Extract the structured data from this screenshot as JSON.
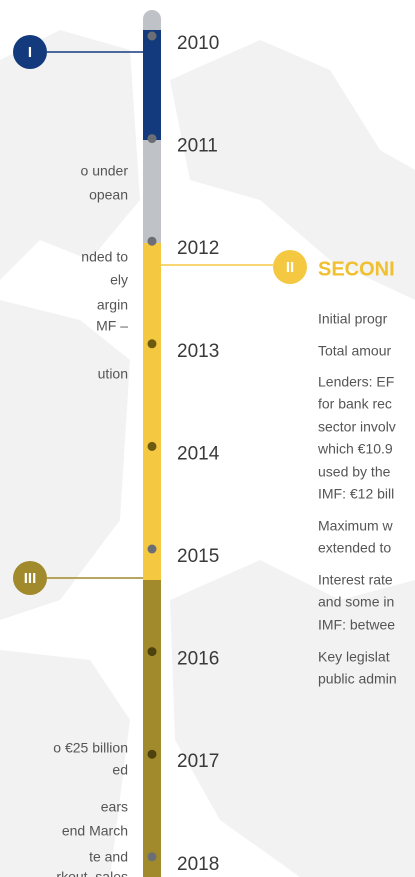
{
  "timeline": {
    "years": [
      "2010",
      "2011",
      "2012",
      "2013",
      "2014",
      "2015",
      "2016",
      "2017",
      "2018"
    ]
  },
  "badges": [
    {
      "label": "I"
    },
    {
      "label": "II"
    },
    {
      "label": "III"
    }
  ],
  "section_heading": "SECONI",
  "left_text": [
    "o under",
    "opean",
    "nded to",
    "ely",
    "argin",
    "MF –",
    "ution",
    "o €25 billion",
    "ed",
    "ears",
    "end March",
    "te and",
    "rkout, sales"
  ],
  "right_text": [
    "Initial progr",
    "Total amour",
    "Lenders: EF",
    "for bank rec",
    "sector involv",
    "which €10.9",
    "used by the",
    "IMF: €12 bill",
    "Maximum w",
    "extended to",
    "Interest rate",
    "and some in",
    "IMF: betwee",
    "Key legislat",
    "public admin"
  ]
}
